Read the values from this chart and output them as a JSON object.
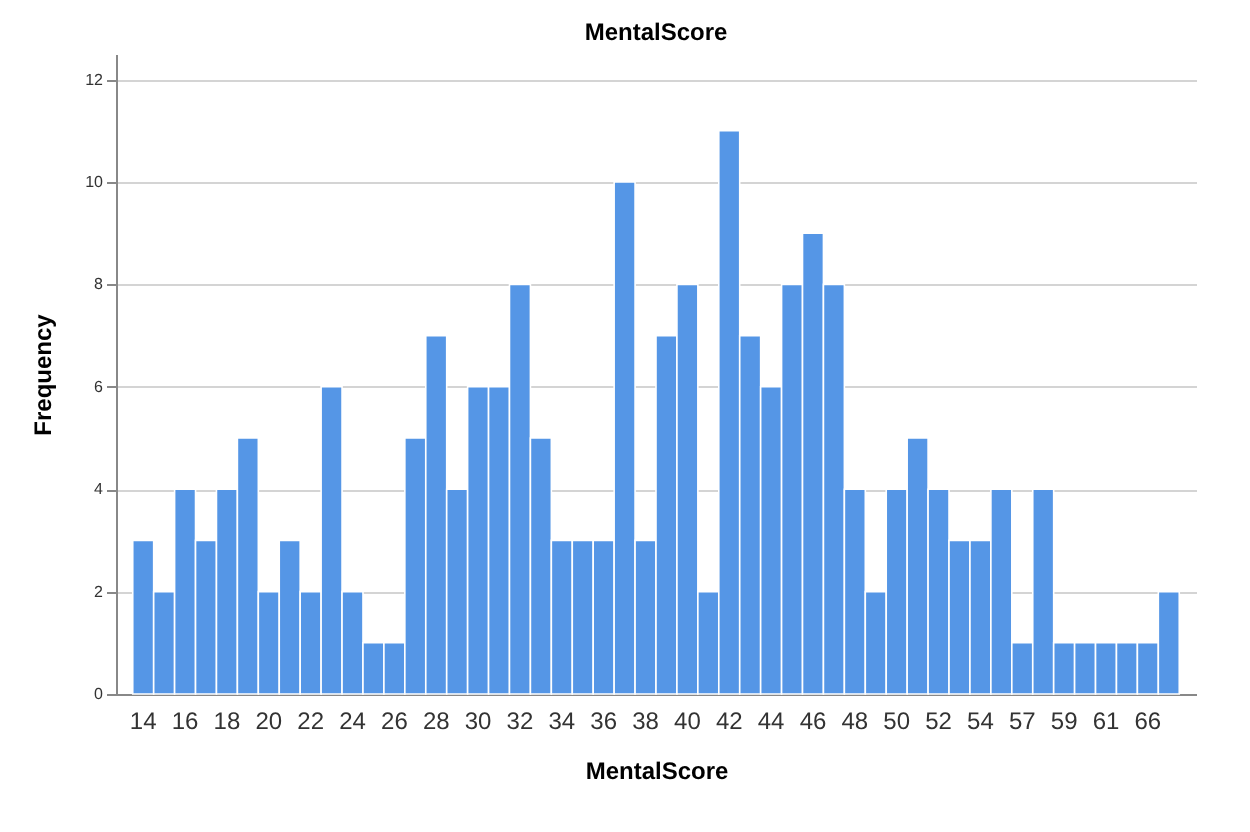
{
  "chart_data": {
    "type": "bar",
    "title": "MentalScore",
    "xlabel": "MentalScore",
    "ylabel": "Frequency",
    "categories": [
      "14",
      null,
      "16",
      null,
      "18",
      null,
      "20",
      null,
      "22",
      null,
      "24",
      null,
      "26",
      null,
      "28",
      null,
      "30",
      null,
      "32",
      null,
      "34",
      null,
      "36",
      null,
      "38",
      null,
      "40",
      null,
      "42",
      null,
      "44",
      null,
      "46",
      null,
      "48",
      null,
      "50",
      null,
      "52",
      null,
      "54",
      null,
      "57",
      null,
      "59",
      null,
      "61",
      null,
      "66",
      null
    ],
    "values": [
      3,
      2,
      4,
      3,
      4,
      5,
      2,
      3,
      2,
      6,
      2,
      1,
      1,
      5,
      7,
      4,
      6,
      6,
      8,
      5,
      3,
      3,
      3,
      10,
      3,
      7,
      8,
      2,
      11,
      7,
      6,
      8,
      9,
      8,
      4,
      2,
      4,
      5,
      4,
      3,
      3,
      4,
      1,
      4,
      1,
      1,
      1,
      1,
      1,
      2
    ],
    "color": "#5596e6",
    "ylim": [
      0,
      12.5
    ],
    "yticks": [
      0,
      2,
      4,
      6,
      8,
      10,
      12
    ],
    "grid": "y"
  }
}
